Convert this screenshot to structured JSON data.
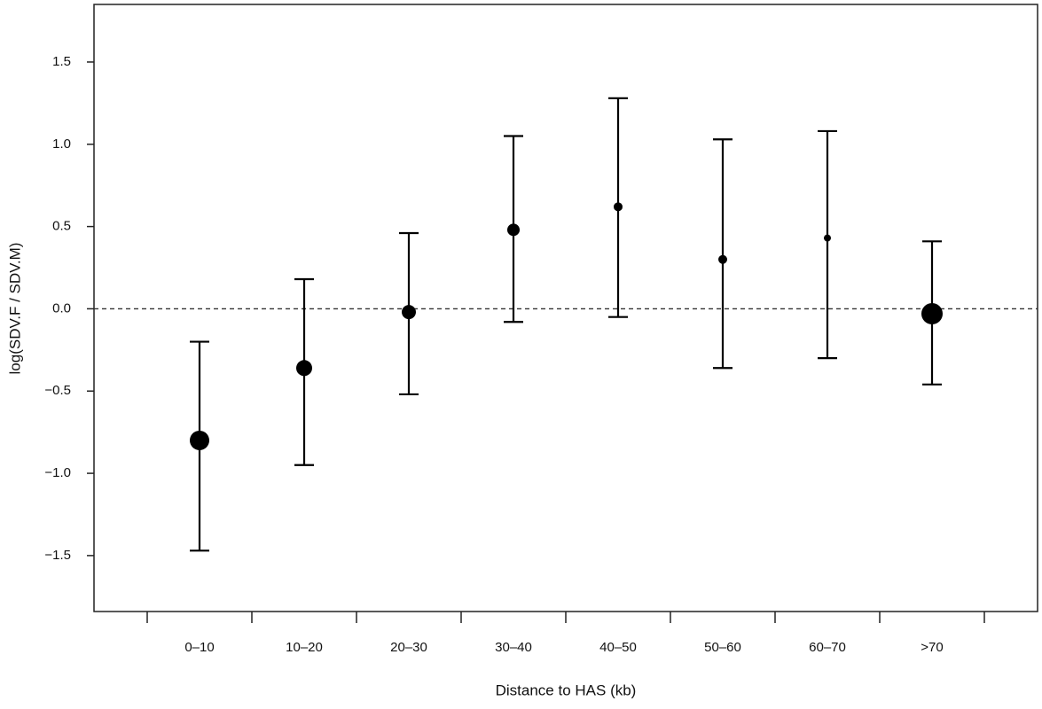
{
  "chart_data": {
    "type": "errorbar",
    "xlabel": "Distance to HAS (kb)",
    "ylabel": "log(SDV.F / SDV.M)",
    "categories": [
      "0–10",
      "10–20",
      "20–30",
      "30–40",
      "40–50",
      "50–60",
      "60–70",
      ">70"
    ],
    "values": [
      -0.8,
      -0.36,
      -0.02,
      0.48,
      0.62,
      0.3,
      0.43,
      -0.03
    ],
    "lower": [
      -1.47,
      -0.95,
      -0.52,
      -0.08,
      -0.05,
      -0.36,
      -0.3,
      -0.46
    ],
    "upper": [
      -0.2,
      0.18,
      0.46,
      1.05,
      1.28,
      1.03,
      1.08,
      0.41
    ],
    "sizes": [
      11,
      9,
      8,
      7,
      5,
      5,
      4,
      12
    ],
    "color": "#000000",
    "reference_line": 0,
    "ylim": [
      -1.84,
      1.85
    ],
    "yticks": [
      {
        "value": -1.5,
        "label": "−1.5"
      },
      {
        "value": -1.0,
        "label": "−1.0"
      },
      {
        "value": -0.5,
        "label": "−0.5"
      },
      {
        "value": 0,
        "label": "0.0"
      },
      0.5,
      {
        "value": 1.0,
        "label": "1.0"
      },
      1.5
    ]
  }
}
